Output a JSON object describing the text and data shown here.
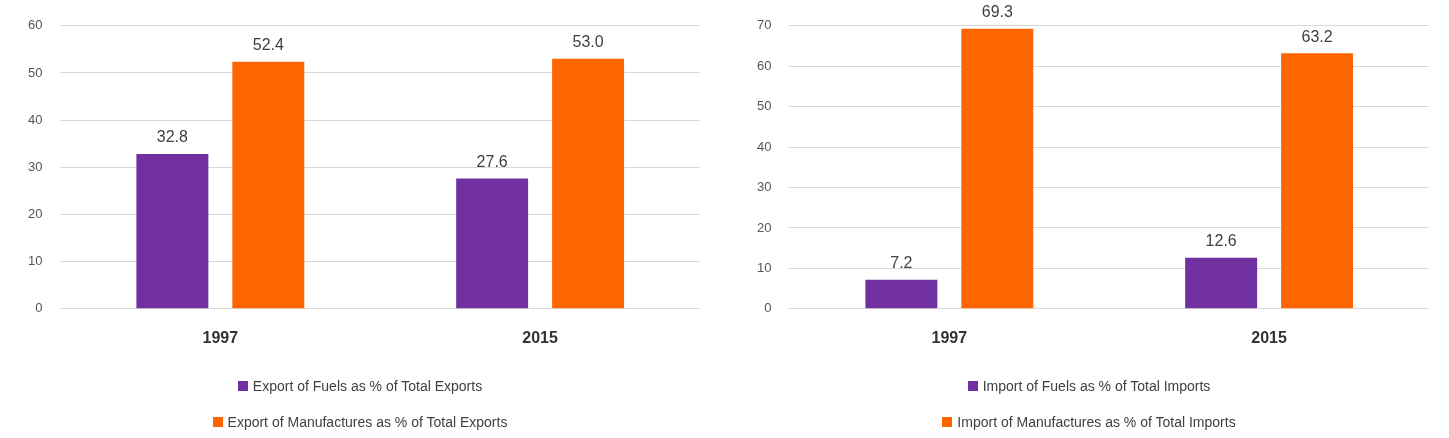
{
  "chart_data": [
    {
      "type": "bar",
      "categories": [
        "1997",
        "2015"
      ],
      "series": [
        {
          "name": "Export of Fuels as % of Total Exports",
          "color": "#7030a0",
          "values": [
            32.8,
            27.6
          ],
          "value_labels": [
            "32.8",
            "27.6"
          ]
        },
        {
          "name": "Export of Manufactures as % of Total Exports",
          "color": "#ff6600",
          "values": [
            52.4,
            53.0
          ],
          "value_labels": [
            "52.4",
            "53.0"
          ]
        }
      ],
      "ylim": [
        0,
        60
      ],
      "yticks": [
        0,
        10,
        20,
        30,
        40,
        50,
        60
      ],
      "grid": "y",
      "legend": "bottom"
    },
    {
      "type": "bar",
      "categories": [
        "1997",
        "2015"
      ],
      "series": [
        {
          "name": "Import of Fuels as % of Total Imports",
          "color": "#7030a0",
          "values": [
            7.2,
            12.6
          ],
          "value_labels": [
            "7.2",
            "12.6"
          ]
        },
        {
          "name": "Import of Manufactures as % of Total Imports",
          "color": "#ff6600",
          "values": [
            69.3,
            63.2
          ],
          "value_labels": [
            "69.3",
            "63.2"
          ]
        }
      ],
      "ylim": [
        0,
        70
      ],
      "yticks": [
        0,
        10,
        20,
        30,
        40,
        50,
        60,
        70
      ],
      "grid": "y",
      "legend": "bottom"
    }
  ]
}
